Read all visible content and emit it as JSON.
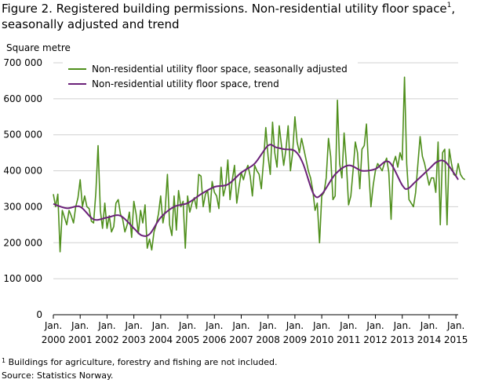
{
  "figure": {
    "title": "Figure 2. Registered building permissions. Non-residential utility floor space",
    "title_superscript": "1",
    "title_suffix": ", seasonally adjusted and trend",
    "footnote_marker": "1",
    "footnote": "Buildings for agriculture, forestry and fishing are not included.",
    "source": "Source: Statistics Norway."
  },
  "chart_data": {
    "type": "line",
    "ylabel": "Square metre",
    "xlabel": "",
    "ylim": [
      0,
      700000
    ],
    "yticks": [
      "0",
      "100 000",
      "200 000",
      "300 000",
      "400 000",
      "500 000",
      "600 000",
      "700 000"
    ],
    "yticks_values": [
      0,
      100000,
      200000,
      300000,
      400000,
      500000,
      600000,
      700000
    ],
    "xlim": [
      2000,
      2015.083
    ],
    "xticks": [
      {
        "top": "Jan.",
        "bottom": "2000",
        "value": 2000
      },
      {
        "top": "Jan.",
        "bottom": "2001",
        "value": 2001
      },
      {
        "top": "Jan.",
        "bottom": "2002",
        "value": 2002
      },
      {
        "top": "Jan.",
        "bottom": "2003",
        "value": 2003
      },
      {
        "top": "Jan.",
        "bottom": "2004",
        "value": 2004
      },
      {
        "top": "Jan.",
        "bottom": "2005",
        "value": 2005
      },
      {
        "top": "Jan.",
        "bottom": "2006",
        "value": 2006
      },
      {
        "top": "Jan.",
        "bottom": "2007",
        "value": 2007
      },
      {
        "top": "Jan.",
        "bottom": "2008",
        "value": 2008
      },
      {
        "top": "Jan.",
        "bottom": "2009",
        "value": 2009
      },
      {
        "top": "Jan.",
        "bottom": "2010",
        "value": 2010
      },
      {
        "top": "Jan.",
        "bottom": "2011",
        "value": 2011
      },
      {
        "top": "Jan.",
        "bottom": "2012",
        "value": 2012
      },
      {
        "top": "Jan.",
        "bottom": "2013",
        "value": 2013
      },
      {
        "top": "Jan.",
        "bottom": "2014",
        "value": 2014
      },
      {
        "top": "Jan.",
        "bottom": "2015",
        "value": 2015
      }
    ],
    "grid": "horizontal",
    "legend_position": "top-left",
    "series": [
      {
        "name": "Non-residential utility floor space, seasonally adjusted",
        "color": "#4f8f1c",
        "x_start": 2000,
        "x_step_months": 1,
        "values": [
          335000,
          300000,
          335000,
          175000,
          290000,
          270000,
          250000,
          290000,
          275000,
          255000,
          300000,
          325000,
          375000,
          300000,
          330000,
          300000,
          295000,
          260000,
          255000,
          340000,
          470000,
          290000,
          240000,
          310000,
          240000,
          275000,
          230000,
          245000,
          310000,
          320000,
          280000,
          265000,
          230000,
          250000,
          285000,
          215000,
          315000,
          280000,
          225000,
          290000,
          255000,
          305000,
          185000,
          210000,
          180000,
          230000,
          250000,
          280000,
          330000,
          255000,
          290000,
          390000,
          250000,
          220000,
          330000,
          235000,
          345000,
          300000,
          315000,
          185000,
          330000,
          285000,
          310000,
          325000,
          295000,
          390000,
          385000,
          300000,
          335000,
          345000,
          285000,
          370000,
          340000,
          330000,
          295000,
          410000,
          330000,
          355000,
          430000,
          320000,
          375000,
          415000,
          310000,
          355000,
          395000,
          375000,
          400000,
          415000,
          385000,
          330000,
          415000,
          400000,
          390000,
          350000,
          430000,
          520000,
          440000,
          390000,
          535000,
          450000,
          410000,
          525000,
          470000,
          415000,
          460000,
          525000,
          400000,
          450000,
          550000,
          480000,
          450000,
          490000,
          460000,
          430000,
          400000,
          380000,
          345000,
          290000,
          310000,
          200000,
          330000,
          340000,
          380000,
          490000,
          440000,
          320000,
          330000,
          596000,
          420000,
          380000,
          505000,
          420000,
          305000,
          330000,
          400000,
          480000,
          450000,
          350000,
          460000,
          470000,
          530000,
          400000,
          300000,
          360000,
          400000,
          420000,
          410000,
          400000,
          420000,
          435000,
          395000,
          265000,
          420000,
          440000,
          410000,
          450000,
          430000,
          660000,
          420000,
          320000,
          310000,
          300000,
          340000,
          420000,
          495000,
          440000,
          420000,
          390000,
          360000,
          380000,
          380000,
          340000,
          480000,
          250000,
          450000,
          460000,
          250000,
          460000,
          420000,
          390000,
          385000,
          420000,
          390000,
          380000,
          375000
        ]
      },
      {
        "name": "Non-residential utility floor space, trend",
        "color": "#6b2179",
        "x_points": [
          2000,
          2000.5,
          2001,
          2001.5,
          2002,
          2002.5,
          2003,
          2003.3,
          2003.6,
          2004,
          2004.5,
          2005,
          2005.5,
          2006,
          2006.5,
          2007,
          2007.5,
          2008,
          2008.3,
          2008.6,
          2009,
          2009.3,
          2009.7,
          2010,
          2010.5,
          2011,
          2011.5,
          2012,
          2012.5,
          2013,
          2013.2,
          2013.5,
          2014,
          2014.3,
          2014.6,
          2015,
          2015.083
        ],
        "values": [
          308000,
          296000,
          300000,
          265000,
          270000,
          275000,
          240000,
          220000,
          225000,
          270000,
          300000,
          310000,
          335000,
          355000,
          362000,
          395000,
          420000,
          470000,
          465000,
          460000,
          455000,
          420000,
          335000,
          335000,
          390000,
          415000,
          400000,
          405000,
          425000,
          360000,
          350000,
          370000,
          405000,
          425000,
          425000,
          385000,
          375000
        ]
      }
    ]
  }
}
